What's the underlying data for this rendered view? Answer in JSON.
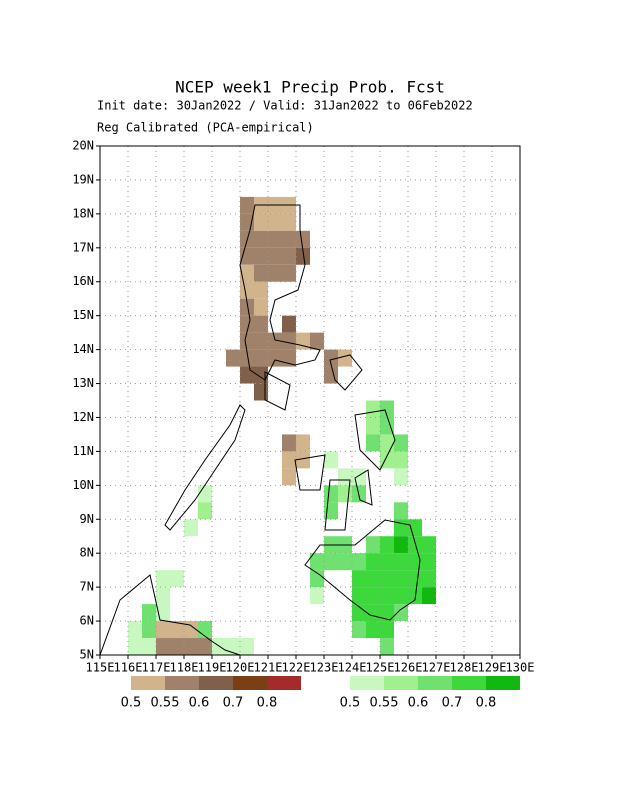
{
  "title": "NCEP week1 Precip Prob. Fcst",
  "subtitle": "Init date: 30Jan2022 / Valid: 31Jan2022 to 06Feb2022",
  "subtitle2": "Reg Calibrated (PCA-empirical)",
  "map": {
    "xlim": [
      115,
      130
    ],
    "ylim": [
      5,
      20
    ],
    "xticks": [
      {
        "value": 115,
        "label": "115E"
      },
      {
        "value": 116,
        "label": "116E"
      },
      {
        "value": 117,
        "label": "117E"
      },
      {
        "value": 118,
        "label": "118E"
      },
      {
        "value": 119,
        "label": "119E"
      },
      {
        "value": 120,
        "label": "120E"
      },
      {
        "value": 121,
        "label": "121E"
      },
      {
        "value": 122,
        "label": "122E"
      },
      {
        "value": 123,
        "label": "123E"
      },
      {
        "value": 124,
        "label": "124E"
      },
      {
        "value": 125,
        "label": "125E"
      },
      {
        "value": 126,
        "label": "126E"
      },
      {
        "value": 127,
        "label": "127E"
      },
      {
        "value": 128,
        "label": "128E"
      },
      {
        "value": 129,
        "label": "129E"
      },
      {
        "value": 130,
        "label": "130E"
      }
    ],
    "yticks": [
      {
        "value": 5,
        "label": "5N"
      },
      {
        "value": 6,
        "label": "6N"
      },
      {
        "value": 7,
        "label": "7N"
      },
      {
        "value": 8,
        "label": "8N"
      },
      {
        "value": 9,
        "label": "9N"
      },
      {
        "value": 10,
        "label": "10N"
      },
      {
        "value": 11,
        "label": "11N"
      },
      {
        "value": 12,
        "label": "12N"
      },
      {
        "value": 13,
        "label": "13N"
      },
      {
        "value": 14,
        "label": "14N"
      },
      {
        "value": 15,
        "label": "15N"
      },
      {
        "value": 16,
        "label": "16N"
      },
      {
        "value": 17,
        "label": "17N"
      },
      {
        "value": 18,
        "label": "18N"
      },
      {
        "value": 19,
        "label": "19N"
      },
      {
        "value": 20,
        "label": "20N"
      }
    ],
    "grid": true,
    "dry_legend": {
      "levels": [
        0.5,
        0.55,
        0.6,
        0.7,
        0.8
      ],
      "colors": [
        "#d2b48c",
        "#a0826a",
        "#80604a",
        "#7a3f12",
        "#a52a2a"
      ]
    },
    "wet_legend": {
      "levels": [
        0.5,
        0.55,
        0.6,
        0.7,
        0.8
      ],
      "colors": [
        "#c8f8c0",
        "#a0f090",
        "#70e070",
        "#3cd83c",
        "#10b810"
      ]
    },
    "dry_cells": [
      [
        120,
        18,
        0.55
      ],
      [
        120.5,
        18,
        0.5
      ],
      [
        121,
        18,
        0.5
      ],
      [
        121.5,
        18,
        0.5
      ],
      [
        120,
        17.5,
        0.55
      ],
      [
        120.5,
        17.5,
        0.5
      ],
      [
        121,
        17.5,
        0.5
      ],
      [
        121.5,
        17.5,
        0.5
      ],
      [
        120,
        17,
        0.55
      ],
      [
        120.5,
        17,
        0.55
      ],
      [
        121,
        17,
        0.55
      ],
      [
        121.5,
        17,
        0.55
      ],
      [
        122,
        17,
        0.55
      ],
      [
        120,
        16.5,
        0.55
      ],
      [
        120.5,
        16.5,
        0.55
      ],
      [
        121,
        16.5,
        0.55
      ],
      [
        121.5,
        16.5,
        0.55
      ],
      [
        122,
        16.5,
        0.6
      ],
      [
        120,
        16,
        0.5
      ],
      [
        120.5,
        16,
        0.55
      ],
      [
        121,
        16,
        0.55
      ],
      [
        121.5,
        16,
        0.55
      ],
      [
        120,
        15.5,
        0.5
      ],
      [
        120.5,
        15.5,
        0.5
      ],
      [
        120,
        15,
        0.55
      ],
      [
        120.5,
        15,
        0.5
      ],
      [
        120,
        14.5,
        0.55
      ],
      [
        120.5,
        14.5,
        0.55
      ],
      [
        121.5,
        14.5,
        0.6
      ],
      [
        120,
        14,
        0.55
      ],
      [
        120.5,
        14,
        0.55
      ],
      [
        121,
        14,
        0.55
      ],
      [
        121.5,
        14,
        0.55
      ],
      [
        122,
        14,
        0.5
      ],
      [
        122.5,
        14,
        0.55
      ],
      [
        119.5,
        13.5,
        0.55
      ],
      [
        120,
        13.5,
        0.55
      ],
      [
        120.5,
        13.5,
        0.55
      ],
      [
        121,
        13.5,
        0.55
      ],
      [
        121.5,
        13.5,
        0.55
      ],
      [
        123,
        13.5,
        0.55
      ],
      [
        123.5,
        13.5,
        0.5
      ],
      [
        120,
        13,
        0.6
      ],
      [
        120.5,
        13,
        0.6
      ],
      [
        123,
        13,
        0.55
      ],
      [
        120.5,
        12.5,
        0.6
      ],
      [
        121.5,
        11,
        0.55
      ],
      [
        122,
        11,
        0.5
      ],
      [
        121.5,
        10.5,
        0.5
      ],
      [
        122,
        10.5,
        0.5
      ],
      [
        121.5,
        10,
        0.5
      ],
      [
        117,
        5.5,
        0.5
      ],
      [
        117.5,
        5.5,
        0.5
      ],
      [
        118,
        5.5,
        0.5
      ],
      [
        117,
        5,
        0.55
      ],
      [
        117.5,
        5,
        0.55
      ],
      [
        118,
        5,
        0.55
      ],
      [
        118.5,
        5,
        0.55
      ]
    ],
    "wet_cells": [
      [
        124.5,
        12,
        0.55
      ],
      [
        125,
        12,
        0.6
      ],
      [
        124.5,
        11.5,
        0.55
      ],
      [
        125,
        11.5,
        0.6
      ],
      [
        124.5,
        11,
        0.6
      ],
      [
        125,
        11,
        0.55
      ],
      [
        125.5,
        11,
        0.6
      ],
      [
        123,
        10.5,
        0.5
      ],
      [
        125,
        10.5,
        0.55
      ],
      [
        125.5,
        10.5,
        0.55
      ],
      [
        123.5,
        10,
        0.5
      ],
      [
        124,
        10,
        0.5
      ],
      [
        125.5,
        10,
        0.5
      ],
      [
        118.5,
        9.5,
        0.5
      ],
      [
        123,
        9.5,
        0.6
      ],
      [
        123.5,
        9.5,
        0.55
      ],
      [
        124,
        9.5,
        0.6
      ],
      [
        118.5,
        9,
        0.55
      ],
      [
        123,
        9,
        0.6
      ],
      [
        125.5,
        9,
        0.6
      ],
      [
        118,
        8.5,
        0.5
      ],
      [
        125.5,
        8.5,
        0.7
      ],
      [
        126,
        8.5,
        0.7
      ],
      [
        123,
        8,
        0.6
      ],
      [
        123.5,
        8,
        0.6
      ],
      [
        124.5,
        8,
        0.6
      ],
      [
        125,
        8,
        0.7
      ],
      [
        125.5,
        8,
        0.8
      ],
      [
        126,
        8,
        0.7
      ],
      [
        126.5,
        8,
        0.7
      ],
      [
        122.5,
        7.5,
        0.6
      ],
      [
        123,
        7.5,
        0.6
      ],
      [
        123.5,
        7.5,
        0.6
      ],
      [
        124,
        7.5,
        0.6
      ],
      [
        124.5,
        7.5,
        0.7
      ],
      [
        125,
        7.5,
        0.7
      ],
      [
        125.5,
        7.5,
        0.7
      ],
      [
        126,
        7.5,
        0.7
      ],
      [
        126.5,
        7.5,
        0.7
      ],
      [
        117,
        7,
        0.5
      ],
      [
        117.5,
        7,
        0.5
      ],
      [
        122.5,
        7,
        0.6
      ],
      [
        124,
        7,
        0.7
      ],
      [
        124.5,
        7,
        0.7
      ],
      [
        125,
        7,
        0.7
      ],
      [
        125.5,
        7,
        0.7
      ],
      [
        126,
        7,
        0.7
      ],
      [
        126.5,
        7,
        0.7
      ],
      [
        117,
        6.5,
        0.5
      ],
      [
        122.5,
        6.5,
        0.5
      ],
      [
        124,
        6.5,
        0.7
      ],
      [
        124.5,
        6.5,
        0.7
      ],
      [
        125,
        6.5,
        0.7
      ],
      [
        125.5,
        6.5,
        0.7
      ],
      [
        126,
        6.5,
        0.7
      ],
      [
        126.5,
        6.5,
        0.8
      ],
      [
        116.5,
        6,
        0.6
      ],
      [
        117,
        6,
        0.5
      ],
      [
        124,
        6,
        0.7
      ],
      [
        124.5,
        6,
        0.7
      ],
      [
        125,
        6,
        0.7
      ],
      [
        125.5,
        6,
        0.6
      ],
      [
        116,
        5.5,
        0.5
      ],
      [
        116.5,
        5.5,
        0.6
      ],
      [
        118.5,
        5.5,
        0.6
      ],
      [
        124,
        5.5,
        0.6
      ],
      [
        124.5,
        5.5,
        0.7
      ],
      [
        125,
        5.5,
        0.7
      ],
      [
        116,
        5,
        0.5
      ],
      [
        116.5,
        5,
        0.5
      ],
      [
        119,
        5,
        0.5
      ],
      [
        119.5,
        5,
        0.5
      ],
      [
        120,
        5,
        0.5
      ],
      [
        125,
        5,
        0.6
      ]
    ]
  }
}
